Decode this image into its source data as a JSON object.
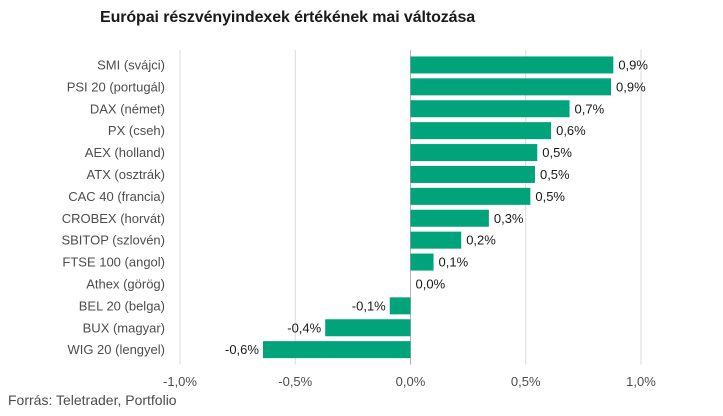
{
  "title": "Európai részvényindexek értékének mai változása",
  "source": "Forrás: Teletrader, Portfolio",
  "colors": {
    "bar": "#00a37a",
    "grid": "#d9d9d9",
    "zero_line": "#b3b3b3"
  },
  "chart_data": {
    "type": "bar",
    "orientation": "horizontal",
    "title": "Európai részvényindexek értékének mai változása",
    "xlabel": "",
    "ylabel": "",
    "xlim": [
      -1.0,
      1.0
    ],
    "grid": true,
    "categories": [
      "SMI (svájci)",
      "PSI 20 (portugál)",
      "DAX (német)",
      "PX (cseh)",
      "AEX (holland)",
      "ATX (osztrák)",
      "CAC 40 (francia)",
      "CROBEX (horvát)",
      "SBITOP (szlovén)",
      "FTSE 100 (angol)",
      "Athex (görög)",
      "BEL 20 (belga)",
      "BUX (magyar)",
      "WIG 20 (lengyel)"
    ],
    "values": [
      0.88,
      0.87,
      0.69,
      0.61,
      0.55,
      0.54,
      0.52,
      0.34,
      0.22,
      0.1,
      0.0,
      -0.09,
      -0.37,
      -0.64
    ],
    "value_labels": [
      "0,9%",
      "0,9%",
      "0,7%",
      "0,6%",
      "0,5%",
      "0,5%",
      "0,5%",
      "0,3%",
      "0,2%",
      "0,1%",
      "0,0%",
      "-0,1%",
      "-0,4%",
      "-0,6%"
    ],
    "ticks": [
      -1.0,
      -0.5,
      0.0,
      0.5,
      1.0
    ],
    "tick_labels": [
      "-1,0%",
      "-0,5%",
      "0,0%",
      "0,5%",
      "1,0%"
    ]
  }
}
